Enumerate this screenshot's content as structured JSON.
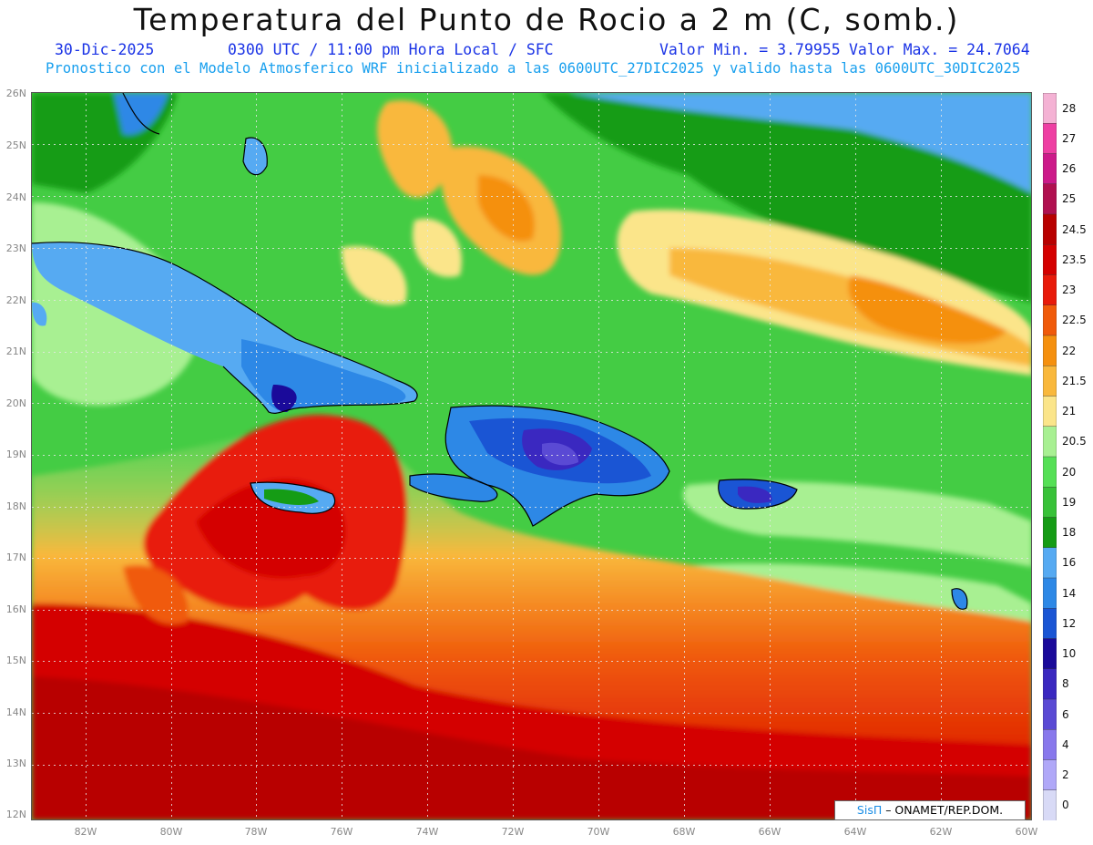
{
  "title": "Temperatura del Punto de Rocio a 2 m (C, somb.)",
  "header": {
    "date": "30-Dic-2025",
    "time_info": "0300 UTC / 11:00 pm Hora Local / SFC",
    "min_label": "Valor Min. = 3.79955",
    "max_label": "Valor Max. = 24.7064",
    "model_info": "Pronostico con el Modelo Atmosferico WRF inicializado a las 0600UTC_27DIC2025 y valido hasta las  0600UTC_30DIC2025"
  },
  "map": {
    "lat_labels": [
      "26N",
      "25N",
      "24N",
      "23N",
      "22N",
      "21N",
      "20N",
      "19N",
      "18N",
      "17N",
      "16N",
      "15N",
      "14N",
      "13N",
      "12N"
    ],
    "lon_labels": [
      "82W",
      "80W",
      "78W",
      "76W",
      "74W",
      "72W",
      "70W",
      "68W",
      "66W",
      "64W",
      "62W",
      "60W"
    ],
    "ocean_color": "#44cc44",
    "coast_color": "#000000"
  },
  "legend": {
    "labels": [
      "28",
      "27",
      "26",
      "25",
      "24.5",
      "23.5",
      "23",
      "22.5",
      "22",
      "21.5",
      "21",
      "20.5",
      "20",
      "19",
      "18",
      "16",
      "14",
      "12",
      "10",
      "8",
      "6",
      "4",
      "2",
      "0"
    ],
    "colors": [
      "#f4b2d4",
      "#ee3fa3",
      "#cc1a8a",
      "#b01050",
      "#b80000",
      "#d40000",
      "#e81a0a",
      "#f05a0a",
      "#f5900e",
      "#f9b83c",
      "#fbe58a",
      "#a8f092",
      "#55e055",
      "#38c238",
      "#159c15",
      "#56aaf2",
      "#2d88e6",
      "#1a55d4",
      "#1a0a9a",
      "#3a28c0",
      "#5a4ad4",
      "#8878ec",
      "#b0a8f8",
      "#d8daf6"
    ]
  },
  "credit": {
    "sis": "SisΠ",
    "rest": " – ONAMET/REP.DOM."
  }
}
